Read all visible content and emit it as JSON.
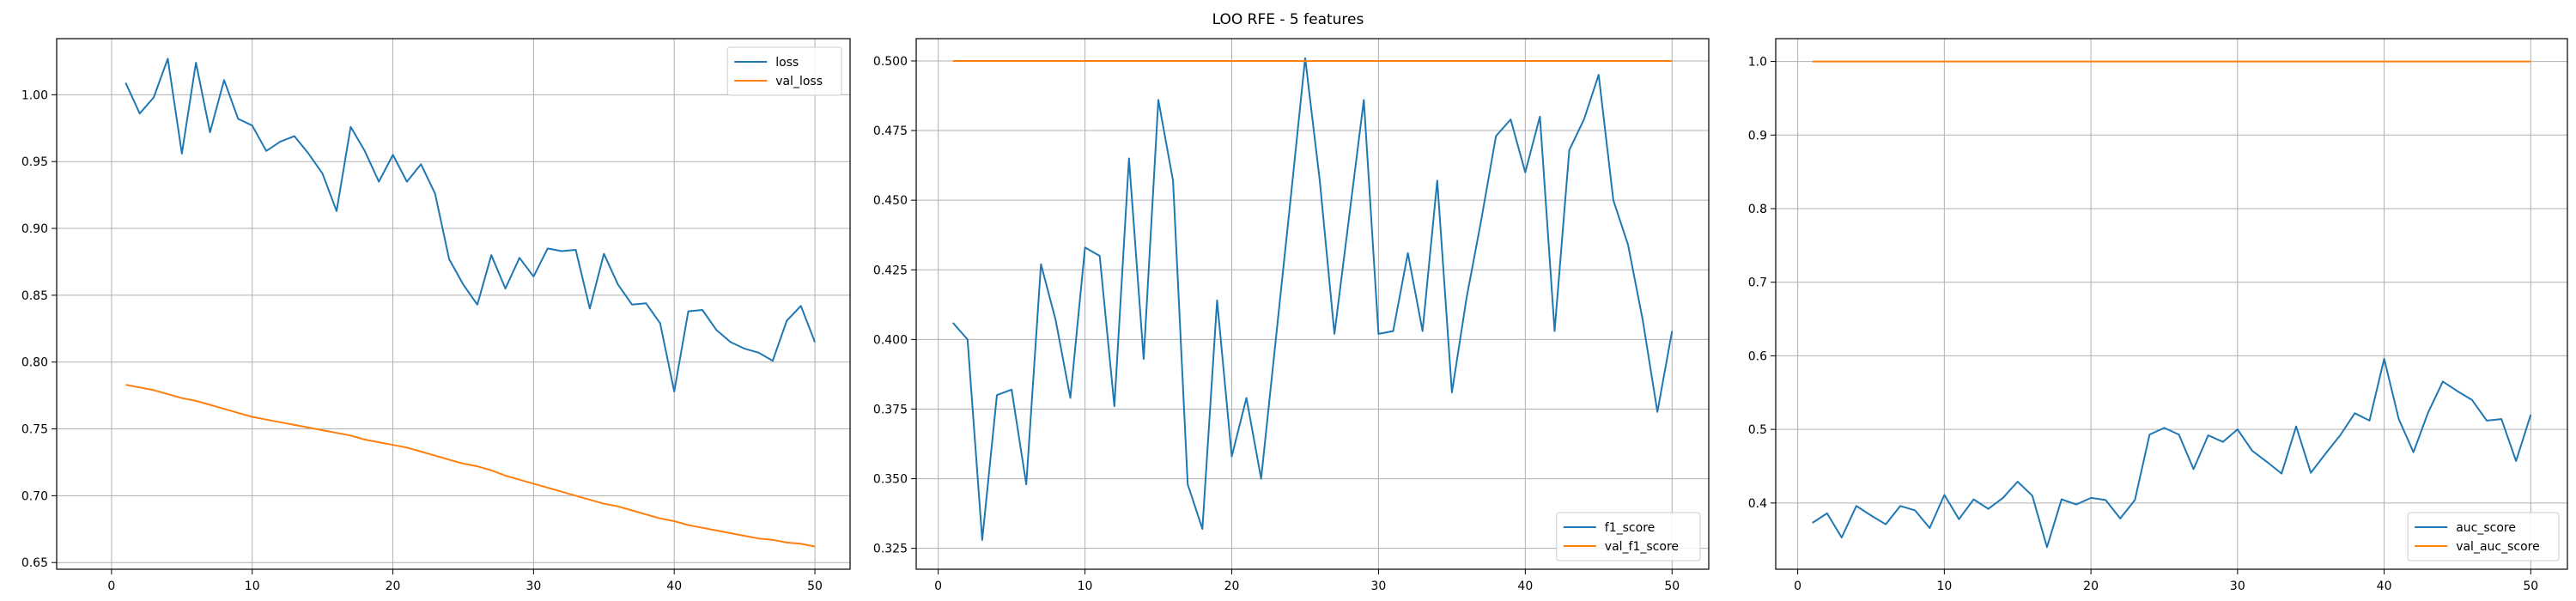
{
  "title": "LOO RFE - 5 features",
  "colors": {
    "blue": "#1f77b4",
    "orange": "#ff7f0e",
    "grid": "#b0b0b0"
  },
  "chart_data": [
    {
      "type": "line",
      "x": [
        1,
        2,
        3,
        4,
        5,
        6,
        7,
        8,
        9,
        10,
        11,
        12,
        13,
        14,
        15,
        16,
        17,
        18,
        19,
        20,
        21,
        22,
        23,
        24,
        25,
        26,
        27,
        28,
        29,
        30,
        31,
        32,
        33,
        34,
        35,
        36,
        37,
        38,
        39,
        40,
        41,
        42,
        43,
        44,
        45,
        46,
        47,
        48,
        49,
        50
      ],
      "xlim": [
        -3.9,
        52.5
      ],
      "ylim": [
        0.645,
        1.042
      ],
      "xticks": [
        0,
        10,
        20,
        30,
        40,
        50
      ],
      "yticks": [
        0.65,
        0.7,
        0.75,
        0.8,
        0.85,
        0.9,
        0.95,
        1.0
      ],
      "ytick_decimals": 2,
      "grid": true,
      "legend_position": "top-right",
      "series": [
        {
          "name": "loss",
          "color": "blue",
          "values": [
            1.009,
            0.986,
            0.998,
            1.027,
            0.956,
            1.024,
            0.972,
            1.011,
            0.982,
            0.977,
            0.958,
            0.965,
            0.969,
            0.956,
            0.941,
            0.913,
            0.976,
            0.958,
            0.935,
            0.955,
            0.935,
            0.948,
            0.926,
            0.877,
            0.858,
            0.843,
            0.88,
            0.855,
            0.878,
            0.864,
            0.885,
            0.883,
            0.884,
            0.84,
            0.881,
            0.858,
            0.843,
            0.844,
            0.829,
            0.778,
            0.838,
            0.839,
            0.824,
            0.815,
            0.81,
            0.807,
            0.801,
            0.831,
            0.842,
            0.815
          ]
        },
        {
          "name": "val_loss",
          "color": "orange",
          "values": [
            0.783,
            0.781,
            0.779,
            0.776,
            0.773,
            0.771,
            0.768,
            0.765,
            0.762,
            0.759,
            0.757,
            0.755,
            0.753,
            0.751,
            0.749,
            0.747,
            0.745,
            0.742,
            0.74,
            0.738,
            0.736,
            0.733,
            0.73,
            0.727,
            0.724,
            0.722,
            0.719,
            0.715,
            0.712,
            0.709,
            0.706,
            0.703,
            0.7,
            0.697,
            0.694,
            0.692,
            0.689,
            0.686,
            0.683,
            0.681,
            0.678,
            0.676,
            0.674,
            0.672,
            0.67,
            0.668,
            0.667,
            0.665,
            0.664,
            0.662
          ]
        }
      ]
    },
    {
      "type": "line",
      "x": [
        1,
        2,
        3,
        4,
        5,
        6,
        7,
        8,
        9,
        10,
        11,
        12,
        13,
        14,
        15,
        16,
        17,
        18,
        19,
        20,
        21,
        22,
        23,
        24,
        25,
        26,
        27,
        28,
        29,
        30,
        31,
        32,
        33,
        34,
        35,
        36,
        37,
        38,
        39,
        40,
        41,
        42,
        43,
        44,
        45,
        46,
        47,
        48,
        49,
        50
      ],
      "xlim": [
        -1.5,
        52.5
      ],
      "ylim": [
        0.3175,
        0.508
      ],
      "xticks": [
        0,
        10,
        20,
        30,
        40,
        50
      ],
      "yticks": [
        0.325,
        0.35,
        0.375,
        0.4,
        0.425,
        0.45,
        0.475,
        0.5
      ],
      "ytick_decimals": 3,
      "grid": true,
      "legend_position": "bottom-right",
      "series": [
        {
          "name": "f1_score",
          "color": "blue",
          "values": [
            0.406,
            0.4,
            0.328,
            0.38,
            0.382,
            0.348,
            0.427,
            0.407,
            0.379,
            0.433,
            0.43,
            0.376,
            0.465,
            0.393,
            0.486,
            0.457,
            0.348,
            0.332,
            0.414,
            0.358,
            0.379,
            0.35,
            0.4,
            0.45,
            0.501,
            0.457,
            0.402,
            0.444,
            0.486,
            0.402,
            0.403,
            0.431,
            0.403,
            0.457,
            0.381,
            0.415,
            0.443,
            0.473,
            0.479,
            0.46,
            0.48,
            0.403,
            0.468,
            0.479,
            0.495,
            0.45,
            0.434,
            0.407,
            0.374,
            0.403
          ]
        },
        {
          "name": "val_f1_score",
          "color": "orange",
          "values": [
            0.5,
            0.5,
            0.5,
            0.5,
            0.5,
            0.5,
            0.5,
            0.5,
            0.5,
            0.5,
            0.5,
            0.5,
            0.5,
            0.5,
            0.5,
            0.5,
            0.5,
            0.5,
            0.5,
            0.5,
            0.5,
            0.5,
            0.5,
            0.5,
            0.5,
            0.5,
            0.5,
            0.5,
            0.5,
            0.5,
            0.5,
            0.5,
            0.5,
            0.5,
            0.5,
            0.5,
            0.5,
            0.5,
            0.5,
            0.5,
            0.5,
            0.5,
            0.5,
            0.5,
            0.5,
            0.5,
            0.5,
            0.5,
            0.5,
            0.5
          ]
        }
      ]
    },
    {
      "type": "line",
      "x": [
        1,
        2,
        3,
        4,
        5,
        6,
        7,
        8,
        9,
        10,
        11,
        12,
        13,
        14,
        15,
        16,
        17,
        18,
        19,
        20,
        21,
        22,
        23,
        24,
        25,
        26,
        27,
        28,
        29,
        30,
        31,
        32,
        33,
        34,
        35,
        36,
        37,
        38,
        39,
        40,
        41,
        42,
        43,
        44,
        45,
        46,
        47,
        48,
        49,
        50
      ],
      "xlim": [
        -1.5,
        52.5
      ],
      "ylim": [
        0.31,
        1.031
      ],
      "xticks": [
        0,
        10,
        20,
        30,
        40,
        50
      ],
      "yticks": [
        0.4,
        0.5,
        0.6,
        0.7,
        0.8,
        0.9,
        1.0
      ],
      "ytick_decimals": 1,
      "grid": true,
      "legend_position": "bottom-right",
      "series": [
        {
          "name": "auc_score",
          "color": "blue",
          "values": [
            0.373,
            0.386,
            0.353,
            0.396,
            0.383,
            0.371,
            0.396,
            0.39,
            0.366,
            0.411,
            0.378,
            0.405,
            0.392,
            0.407,
            0.429,
            0.41,
            0.34,
            0.405,
            0.398,
            0.407,
            0.404,
            0.379,
            0.404,
            0.493,
            0.502,
            0.493,
            0.446,
            0.492,
            0.483,
            0.5,
            0.471,
            0.456,
            0.44,
            0.504,
            0.441,
            0.467,
            0.492,
            0.522,
            0.512,
            0.596,
            0.514,
            0.469,
            0.523,
            0.565,
            0.552,
            0.54,
            0.512,
            0.514,
            0.457,
            0.52
          ]
        },
        {
          "name": "val_auc_score",
          "color": "orange",
          "values": [
            1.0,
            1.0,
            1.0,
            1.0,
            1.0,
            1.0,
            1.0,
            1.0,
            1.0,
            1.0,
            1.0,
            1.0,
            1.0,
            1.0,
            1.0,
            1.0,
            1.0,
            1.0,
            1.0,
            1.0,
            1.0,
            1.0,
            1.0,
            1.0,
            1.0,
            1.0,
            1.0,
            1.0,
            1.0,
            1.0,
            1.0,
            1.0,
            1.0,
            1.0,
            1.0,
            1.0,
            1.0,
            1.0,
            1.0,
            1.0,
            1.0,
            1.0,
            1.0,
            1.0,
            1.0,
            1.0,
            1.0,
            1.0,
            1.0,
            1.0
          ]
        }
      ]
    }
  ]
}
